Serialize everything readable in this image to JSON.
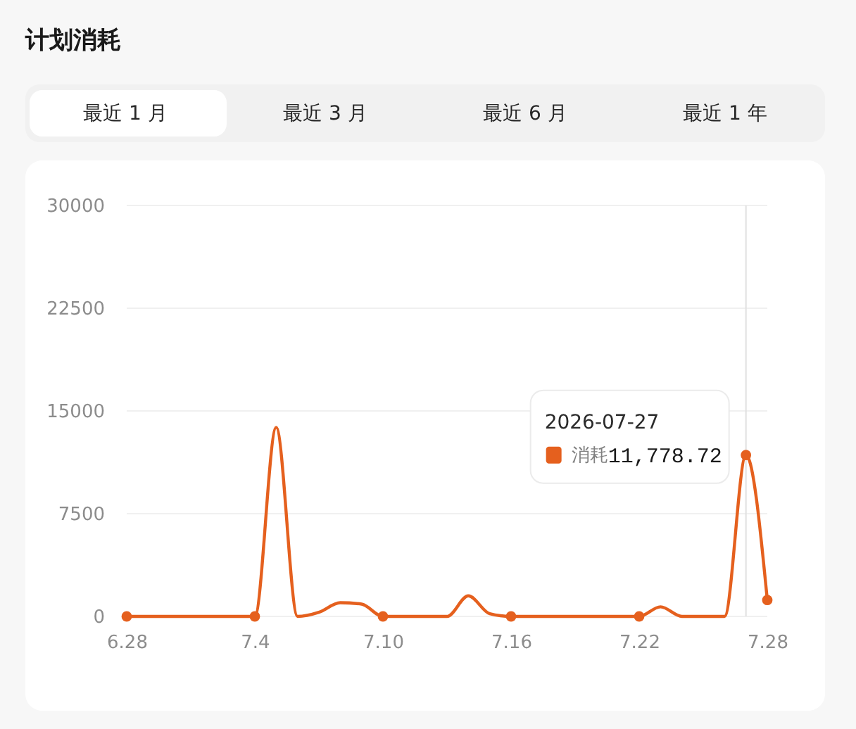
{
  "chart_data": {
    "type": "line",
    "title": "计划消耗",
    "x": [
      "2026-06-28",
      "2026-06-29",
      "2026-06-30",
      "2026-07-01",
      "2026-07-02",
      "2026-07-03",
      "2026-07-04",
      "2026-07-05",
      "2026-07-06",
      "2026-07-07",
      "2026-07-08",
      "2026-07-09",
      "2026-07-10",
      "2026-07-11",
      "2026-07-12",
      "2026-07-13",
      "2026-07-14",
      "2026-07-15",
      "2026-07-16",
      "2026-07-17",
      "2026-07-18",
      "2026-07-19",
      "2026-07-20",
      "2026-07-21",
      "2026-07-22",
      "2026-07-23",
      "2026-07-24",
      "2026-07-25",
      "2026-07-26",
      "2026-07-27",
      "2026-07-28"
    ],
    "series": [
      {
        "name": "消耗",
        "color": "#e5601e",
        "values": [
          0,
          0,
          0,
          0,
          0,
          0,
          0,
          13800,
          0,
          300,
          1000,
          900,
          0,
          0,
          0,
          0,
          1500,
          200,
          0,
          0,
          0,
          0,
          0,
          0,
          0,
          700,
          0,
          0,
          0,
          11778.72,
          1200
        ],
        "value_labels": [
          null,
          null,
          null,
          null,
          null,
          null,
          null,
          null,
          null,
          null,
          null,
          null,
          null,
          null,
          null,
          null,
          null,
          null,
          null,
          null,
          null,
          null,
          null,
          null,
          null,
          null,
          null,
          null,
          null,
          "11,778.72",
          null
        ]
      },
      {
        "type": "scatter",
        "color": "#e5601e",
        "x": [
          "2026-06-28",
          "2026-07-04",
          "2026-07-10",
          "2026-07-16",
          "2026-07-22",
          "2026-07-27",
          "2026-07-28"
        ],
        "values": [
          0,
          0,
          0,
          0,
          0,
          11778.72,
          1200
        ]
      }
    ],
    "xlim": [
      "2026-06-28",
      "2026-07-28"
    ],
    "xticks": [
      {
        "value": "2026-06-28",
        "label": "6.28"
      },
      {
        "value": "2026-07-04",
        "label": "7.4"
      },
      {
        "value": "2026-07-10",
        "label": "7.10"
      },
      {
        "value": "2026-07-16",
        "label": "7.16"
      },
      {
        "value": "2026-07-22",
        "label": "7.22"
      },
      {
        "value": "2026-07-28",
        "label": "7.28"
      }
    ],
    "ylim": [
      0,
      30000
    ],
    "yticks": [
      0,
      7500,
      15000,
      22500,
      30000
    ],
    "grid": "y",
    "ref_lines": [
      {
        "axis": "x",
        "value": "2026-07-27",
        "color": "#e0e0e0"
      }
    ],
    "annotations": [
      "2026-07-27",
      "最近 1 月",
      "最近 3 月",
      "最近 6 月",
      "最近 1 年"
    ]
  }
}
